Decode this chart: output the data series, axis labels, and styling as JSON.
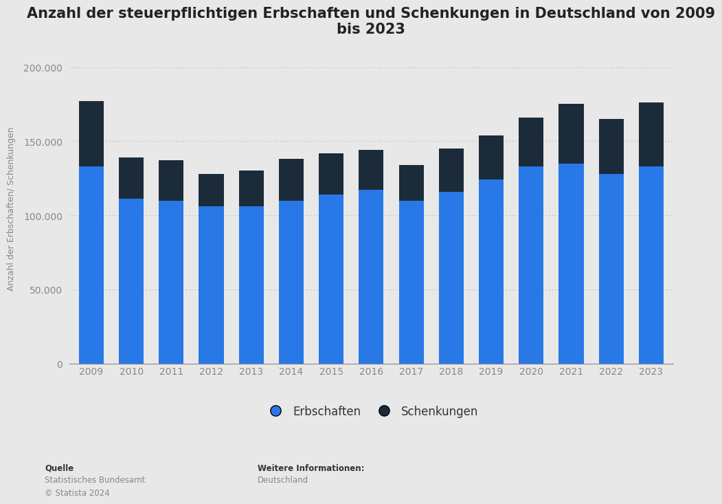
{
  "title": "Anzahl der steuerpflichtigen Erbschaften und Schenkungen in Deutschland von 2009\nbis 2023",
  "ylabel": "Anzahl der Erbschaften/ Schenkungen",
  "years": [
    2009,
    2010,
    2011,
    2012,
    2013,
    2014,
    2015,
    2016,
    2017,
    2018,
    2019,
    2020,
    2021,
    2022,
    2023
  ],
  "erbschaften": [
    133000,
    111000,
    110000,
    106000,
    106000,
    110000,
    114000,
    117000,
    110000,
    116000,
    124000,
    133000,
    135000,
    128000,
    133000
  ],
  "schenkungen": [
    44000,
    28000,
    27000,
    22000,
    24000,
    28000,
    28000,
    27000,
    24000,
    29000,
    30000,
    33000,
    40000,
    37000,
    43000
  ],
  "color_erbschaften": "#2878e8",
  "color_schenkungen": "#1c2b3a",
  "background_color": "#e8e8e8",
  "plot_background": "#e8e8e8",
  "ylim": [
    0,
    210000
  ],
  "yticks": [
    0,
    50000,
    100000,
    150000,
    200000
  ],
  "ytick_labels": [
    "0",
    "50.000",
    "100.000",
    "150.000",
    "200.000"
  ],
  "legend_labels": [
    "Erbschaften",
    "Schenkungen"
  ],
  "source_label": "Quelle",
  "source_body": "Statistisches Bundesamt\n© Statista 2024",
  "info_label": "Weitere Informationen:",
  "info_body": "Deutschland",
  "title_fontsize": 15,
  "axis_label_fontsize": 9,
  "tick_fontsize": 10,
  "legend_fontsize": 12
}
